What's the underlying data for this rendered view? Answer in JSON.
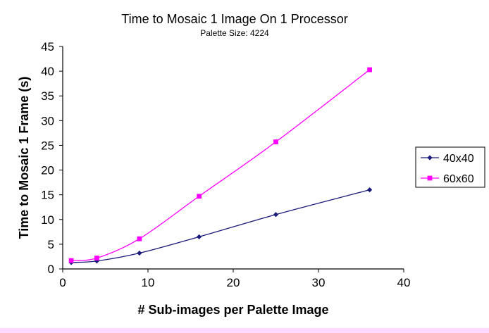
{
  "colors": {
    "series_40": "#1a1a7a",
    "series_60": "#ff00ff",
    "axis": "#000000",
    "bottom_strip": "#ffd9ff"
  },
  "chart_data": {
    "type": "line",
    "title": "Time to Mosaic 1 Image On 1 Processor",
    "subtitle": "Palette Size: 4224",
    "xlabel": "# Sub-images per Palette Image",
    "ylabel": "Time to Mosaic 1 Frame  (s)",
    "xlim": [
      0,
      40
    ],
    "ylim": [
      0,
      45
    ],
    "xticks": [
      0,
      10,
      20,
      30,
      40
    ],
    "yticks": [
      0,
      5,
      10,
      15,
      20,
      25,
      30,
      35,
      40,
      45
    ],
    "grid": false,
    "legend_position": "right",
    "series": [
      {
        "name": "40x40",
        "marker": "diamond",
        "x": [
          1,
          4,
          9,
          16,
          25,
          36
        ],
        "y": [
          1.3,
          1.6,
          3.2,
          6.5,
          11.0,
          16.0
        ]
      },
      {
        "name": "60x60",
        "marker": "square",
        "x": [
          1,
          4,
          9,
          16,
          25,
          36
        ],
        "y": [
          1.7,
          2.2,
          6.1,
          14.7,
          25.7,
          40.3
        ]
      }
    ]
  }
}
